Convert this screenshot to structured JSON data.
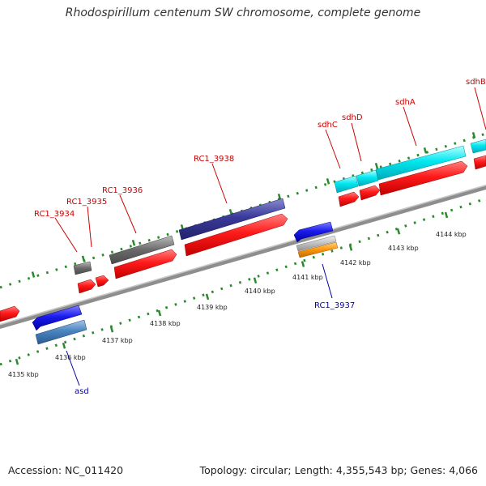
{
  "title": "Rhodospirillum centenum SW chromosome, complete genome",
  "footer": {
    "accession": "Accession: NC_011420",
    "summary": "Topology: circular; Length: 4,355,543 bp; Genes: 4,066"
  },
  "colors": {
    "backbone": "#8a8a8a",
    "tick": "#2a8a2a",
    "cds": "#ff1a1a",
    "forward_label": "#cc0000",
    "reverse_label": "#0000aa"
  },
  "kbp_labels": [
    "4135 kbp",
    "4136 kbp",
    "4137 kbp",
    "4138 kbp",
    "4139 kbp",
    "4140 kbp",
    "4141 kbp",
    "4142 kbp",
    "4143 kbp",
    "4144 kbp"
  ],
  "forward_genes": [
    {
      "label": "RC1_3934",
      "color": "#666666"
    },
    {
      "label": "RC1_3935",
      "color": "#ff1a1a"
    },
    {
      "label": "RC1_3936",
      "color": "#666666"
    },
    {
      "label": "RC1_3938",
      "color": "#3a3a9a"
    },
    {
      "label": "sdhC",
      "color": "#00e0e8"
    },
    {
      "label": "sdhD",
      "color": "#00e0e8"
    },
    {
      "label": "sdhA",
      "color": "#00e0e8"
    },
    {
      "label": "sdhB",
      "color": "#00e0e8"
    }
  ],
  "reverse_genes": [
    {
      "label": "asd",
      "color": "#1a1aee"
    },
    {
      "label": "RC1_3937",
      "color": "#1a1aee"
    }
  ]
}
